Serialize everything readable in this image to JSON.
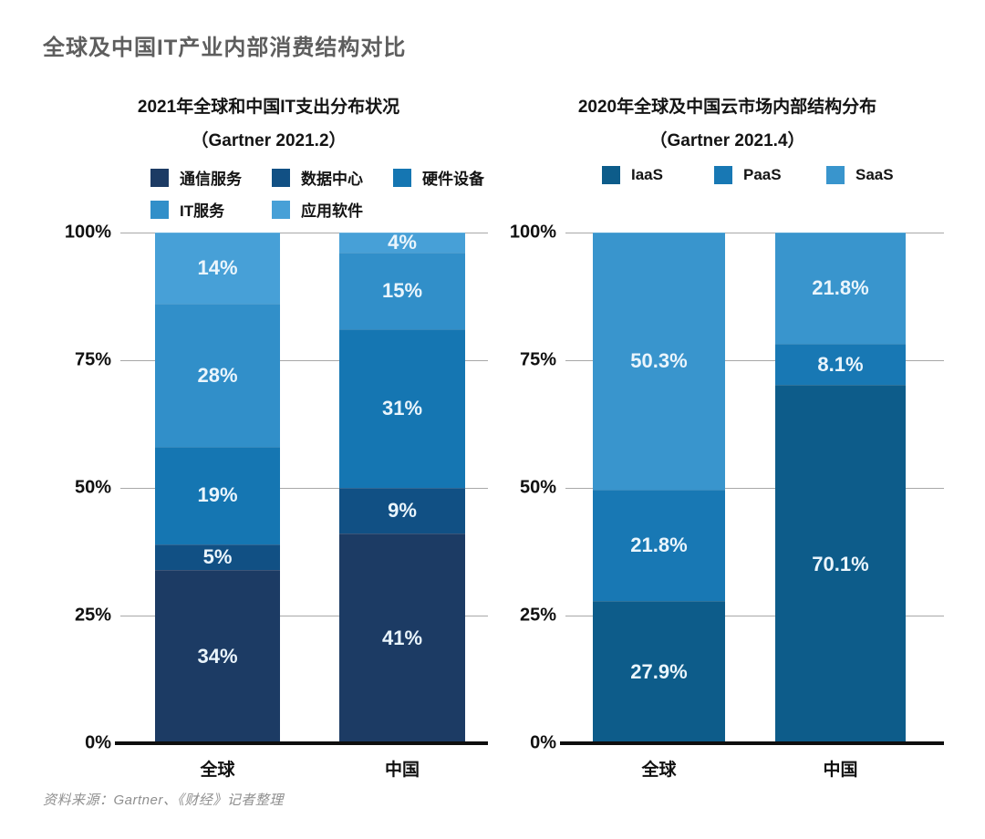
{
  "title": "全球及中国IT产业内部消费结构对比",
  "footer": "资料来源：Gartner、《财经》记者整理",
  "chart_data": [
    {
      "type": "bar",
      "subtype": "stacked-percentage",
      "title": "2021年全球和中国IT支出分布状况",
      "subtitle": "（Gartner 2021.2）",
      "categories": [
        "全球",
        "中国"
      ],
      "series": [
        {
          "name": "通信服务",
          "color": "#1c3b64",
          "values": [
            34,
            41
          ]
        },
        {
          "name": "数据中心",
          "color": "#115084",
          "values": [
            5,
            9
          ]
        },
        {
          "name": "硬件设备",
          "color": "#1576b2",
          "values": [
            19,
            31
          ]
        },
        {
          "name": "IT服务",
          "color": "#318fc9",
          "values": [
            28,
            15
          ]
        },
        {
          "name": "应用软件",
          "color": "#47a0d7",
          "values": [
            14,
            4
          ]
        }
      ],
      "value_suffix": "%",
      "y_ticks": [
        "100%",
        "75%",
        "50%",
        "25%",
        "0%"
      ],
      "ylim": [
        0,
        100
      ],
      "grid": true,
      "legend_position": "top",
      "legend_columns": 3
    },
    {
      "type": "bar",
      "subtype": "stacked-percentage",
      "title": "2020年全球及中国云市场内部结构分布",
      "subtitle": "（Gartner 2021.4）",
      "categories": [
        "全球",
        "中国"
      ],
      "series": [
        {
          "name": "IaaS",
          "color": "#0d5c8a",
          "values": [
            27.9,
            70.1
          ]
        },
        {
          "name": "PaaS",
          "color": "#1878b4",
          "values": [
            21.8,
            8.1
          ]
        },
        {
          "name": "SaaS",
          "color": "#3995cd",
          "values": [
            50.3,
            21.8
          ]
        }
      ],
      "value_suffix": "%",
      "y_ticks": [
        "100%",
        "75%",
        "50%",
        "25%",
        "0%"
      ],
      "ylim": [
        0,
        100
      ],
      "grid": true,
      "legend_position": "top",
      "legend_columns": 3
    }
  ]
}
